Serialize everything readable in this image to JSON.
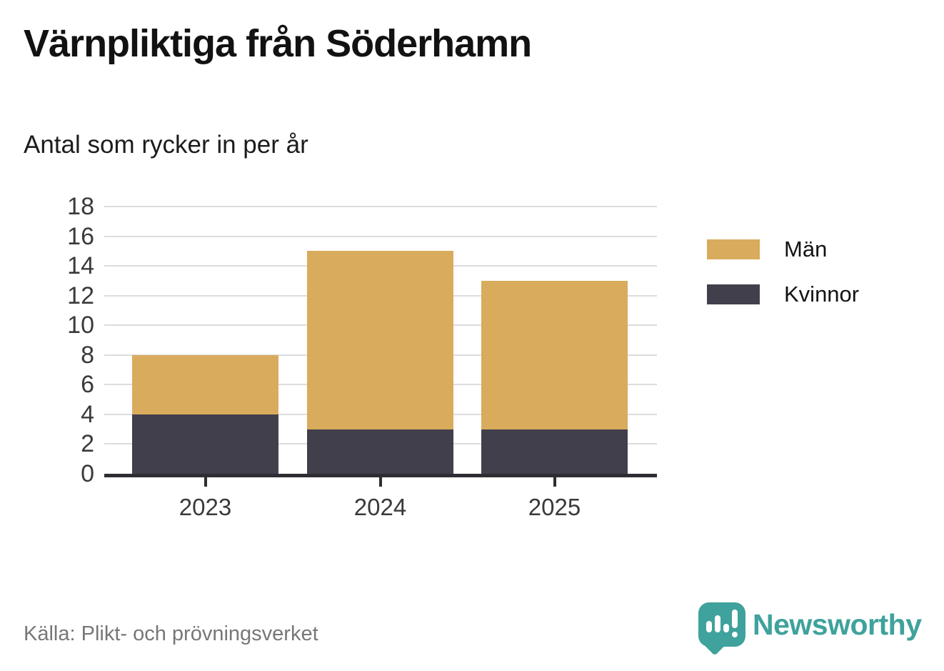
{
  "title": "Värnpliktiga från Söderhamn",
  "subtitle": "Antal som rycker in per år",
  "source": "Källa: Plikt- och prövningsverket",
  "brand": {
    "name": "Newsworthy",
    "teal": "#3fa29c"
  },
  "chart_data": {
    "type": "bar",
    "stacked": true,
    "categories": [
      "2023",
      "2024",
      "2025"
    ],
    "series": [
      {
        "name": "Män",
        "color": "#d9ab5c",
        "values": [
          4,
          12,
          10
        ]
      },
      {
        "name": "Kvinnor",
        "color": "#423f4d",
        "values": [
          4,
          3,
          3
        ]
      }
    ],
    "totals": [
      8,
      15,
      13
    ],
    "title": "Värnpliktiga från Söderhamn",
    "subtitle": "Antal som rycker in per år",
    "xlabel": "",
    "ylabel": "",
    "ylim": [
      0,
      18
    ],
    "yticks": [
      0,
      2,
      4,
      6,
      8,
      10,
      12,
      14,
      16,
      18
    ],
    "grid": true,
    "legend_position": "right",
    "stack_order_bottom_to_top": [
      "Kvinnor",
      "Män"
    ],
    "colors": {
      "grid": "#dcdcdc",
      "axis": "#2e2d33",
      "tick_text": "#3a3a3a",
      "source_text": "#777779"
    }
  }
}
